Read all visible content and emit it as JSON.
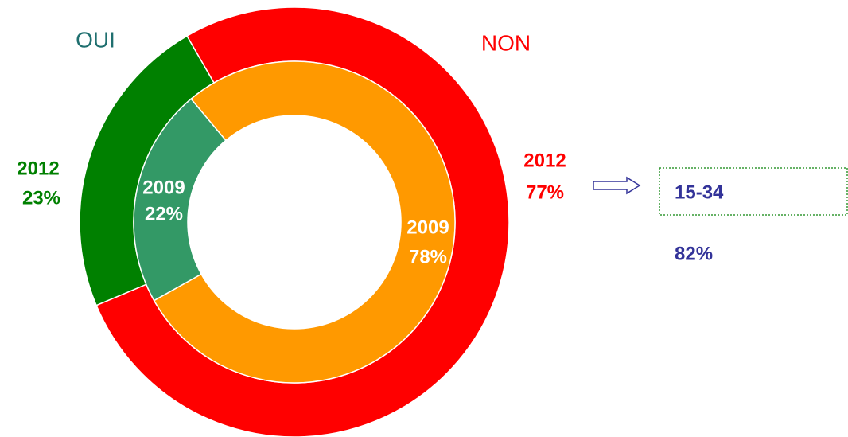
{
  "chart_data": {
    "type": "donut",
    "categories": [
      "OUI",
      "NON"
    ],
    "category_colors": [
      "#1f6f6f",
      "#ff0000"
    ],
    "series": [
      {
        "name": "2012",
        "values": [
          23,
          77
        ],
        "value_labels": [
          "23%",
          "77%"
        ],
        "colors": [
          "#008000",
          "#ff0000"
        ],
        "label_colors": [
          "#008000",
          "#ff0000"
        ]
      },
      {
        "name": "2009",
        "values": [
          22,
          78
        ],
        "value_labels": [
          "22%",
          "78%"
        ],
        "colors": [
          "#339966",
          "#ff9900"
        ],
        "label_colors": [
          "#ffffff",
          "#ffffff"
        ]
      }
    ],
    "annotations": [
      "15-34",
      "82%"
    ]
  }
}
